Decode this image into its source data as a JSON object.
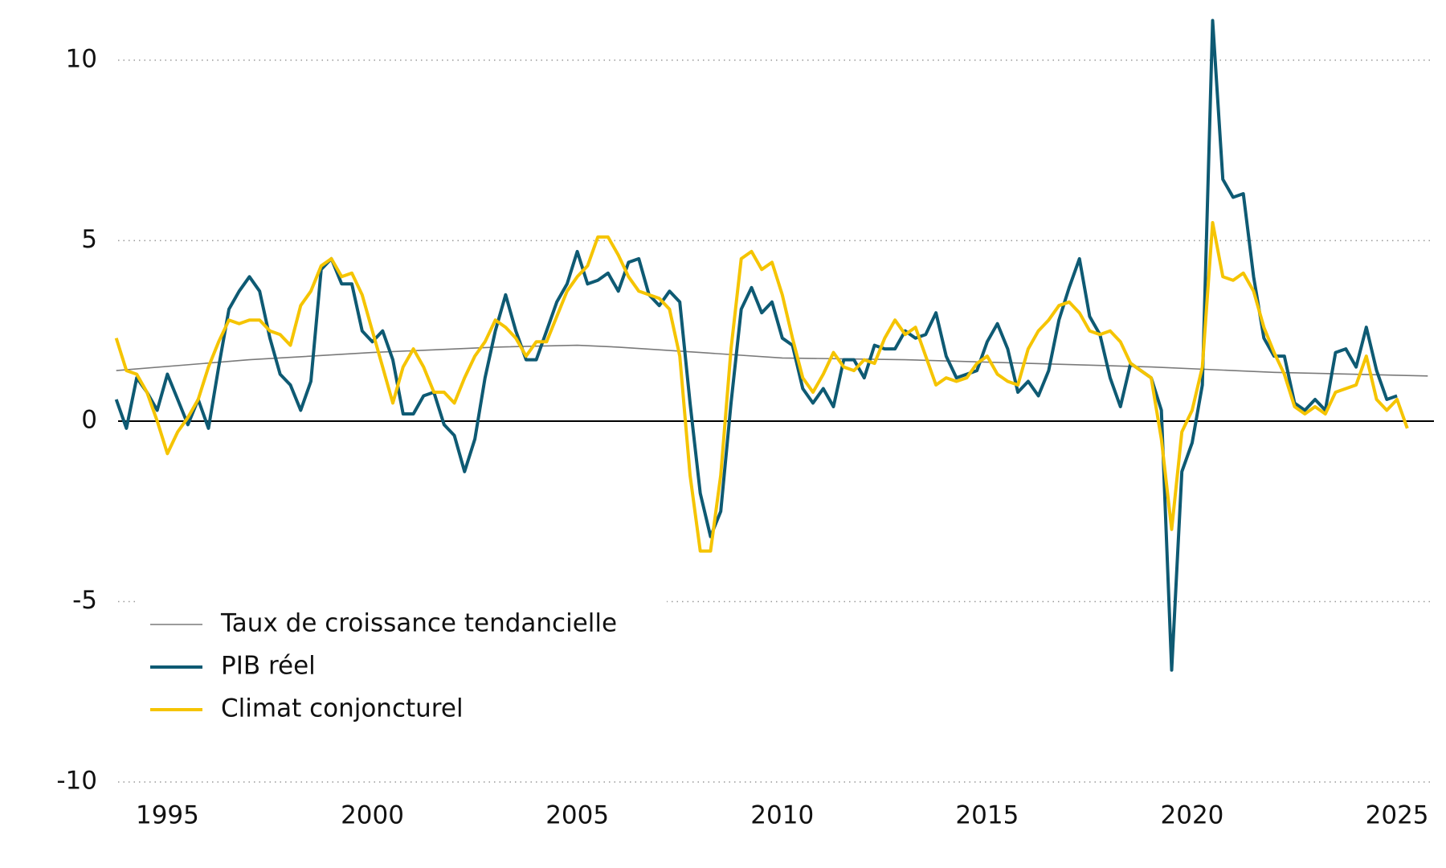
{
  "chart_data": {
    "type": "line",
    "xlim": [
      1993.6,
      2025.9
    ],
    "xticks": [
      1995,
      2000,
      2005,
      2010,
      2015,
      2020,
      2025
    ],
    "ylim": [
      -10,
      11.2
    ],
    "yticks": [
      -10,
      -5,
      0,
      5,
      10
    ],
    "grid": true,
    "legend": "lower-left",
    "x": [
      1993.75,
      1994,
      1994.25,
      1994.5,
      1994.75,
      1995,
      1995.25,
      1995.5,
      1995.75,
      1996,
      1996.25,
      1996.5,
      1996.75,
      1997,
      1997.25,
      1997.5,
      1997.75,
      1998,
      1998.25,
      1998.5,
      1998.75,
      1999,
      1999.25,
      1999.5,
      1999.75,
      2000,
      2000.25,
      2000.5,
      2000.75,
      2001,
      2001.25,
      2001.5,
      2001.75,
      2002,
      2002.25,
      2002.5,
      2002.75,
      2003,
      2003.25,
      2003.5,
      2003.75,
      2004,
      2004.25,
      2004.5,
      2004.75,
      2005,
      2005.25,
      2005.5,
      2005.75,
      2006,
      2006.25,
      2006.5,
      2006.75,
      2007,
      2007.25,
      2007.5,
      2007.75,
      2008,
      2008.25,
      2008.5,
      2008.75,
      2009,
      2009.25,
      2009.5,
      2009.75,
      2010,
      2010.25,
      2010.5,
      2010.75,
      2011,
      2011.25,
      2011.5,
      2011.75,
      2012,
      2012.25,
      2012.5,
      2012.75,
      2013,
      2013.25,
      2013.5,
      2013.75,
      2014,
      2014.25,
      2014.5,
      2014.75,
      2015,
      2015.25,
      2015.5,
      2015.75,
      2016,
      2016.25,
      2016.5,
      2016.75,
      2017,
      2017.25,
      2017.5,
      2017.75,
      2018,
      2018.25,
      2018.5,
      2018.75,
      2019,
      2019.25,
      2019.5,
      2019.75,
      2020,
      2020.25,
      2020.5,
      2020.75,
      2021,
      2021.25,
      2021.5,
      2021.75,
      2022,
      2022.25,
      2022.5,
      2022.75,
      2023,
      2023.25,
      2023.5,
      2023.75,
      2024,
      2024.25,
      2024.5,
      2024.75,
      2025,
      2025.25
    ],
    "series": [
      {
        "name": "Taux de croissance tendancielle",
        "color": "#7a7a7a",
        "width": 1.6,
        "x": [
          1993.75,
          1997,
          2000,
          2003,
          2005,
          2006,
          2008,
          2010,
          2013,
          2016,
          2019,
          2022,
          2025.75
        ],
        "values": [
          1.4,
          1.7,
          1.9,
          2.05,
          2.1,
          2.05,
          1.9,
          1.75,
          1.7,
          1.6,
          1.5,
          1.35,
          1.25
        ]
      },
      {
        "name": "PIB réel",
        "color": "#0e5a73",
        "width": 4,
        "values": [
          0.6,
          -0.2,
          1.2,
          0.8,
          0.3,
          1.3,
          0.6,
          -0.1,
          0.6,
          -0.2,
          1.5,
          3.1,
          3.6,
          4.0,
          3.6,
          2.3,
          1.3,
          1.0,
          0.3,
          1.1,
          4.2,
          4.5,
          3.8,
          3.8,
          2.5,
          2.2,
          2.5,
          1.7,
          0.2,
          0.2,
          0.7,
          0.8,
          -0.1,
          -0.4,
          -1.4,
          -0.5,
          1.2,
          2.5,
          3.5,
          2.5,
          1.7,
          1.7,
          2.5,
          3.3,
          3.8,
          4.7,
          3.8,
          3.9,
          4.1,
          3.6,
          4.4,
          4.5,
          3.5,
          3.2,
          3.6,
          3.3,
          0.5,
          -2.0,
          -3.2,
          -2.5,
          0.5,
          3.1,
          3.7,
          3.0,
          3.3,
          2.3,
          2.1,
          0.9,
          0.5,
          0.9,
          0.4,
          1.7,
          1.7,
          1.2,
          2.1,
          2.0,
          2.0,
          2.5,
          2.3,
          2.4,
          3.0,
          1.8,
          1.2,
          1.3,
          1.4,
          2.2,
          2.7,
          2.0,
          0.8,
          1.1,
          0.7,
          1.4,
          2.8,
          3.7,
          4.5,
          2.9,
          2.4,
          1.2,
          0.4,
          1.6,
          1.4,
          1.2,
          0.3,
          -6.9,
          -1.4,
          -0.6,
          1.0,
          11.1,
          6.7,
          6.2,
          6.3,
          4.0,
          2.3,
          1.8,
          1.8,
          0.5,
          0.3,
          0.6,
          0.3,
          1.9,
          2.0,
          1.5,
          2.6,
          1.4,
          0.6,
          0.7,
          null
        ]
      },
      {
        "name": "Climat conjoncturel",
        "color": "#f5c400",
        "width": 4,
        "values": [
          2.3,
          1.4,
          1.3,
          0.8,
          0.0,
          -0.9,
          -0.3,
          0.1,
          0.6,
          1.5,
          2.2,
          2.8,
          2.7,
          2.8,
          2.8,
          2.5,
          2.4,
          2.1,
          3.2,
          3.6,
          4.3,
          4.5,
          4.0,
          4.1,
          3.5,
          2.5,
          1.5,
          0.5,
          1.5,
          2.0,
          1.5,
          0.8,
          0.8,
          0.5,
          1.2,
          1.8,
          2.2,
          2.8,
          2.6,
          2.3,
          1.8,
          2.2,
          2.2,
          2.9,
          3.6,
          4.0,
          4.3,
          5.1,
          5.1,
          4.6,
          4.0,
          3.6,
          3.5,
          3.4,
          3.1,
          1.8,
          -1.5,
          -3.6,
          -3.6,
          -1.5,
          2.0,
          4.5,
          4.7,
          4.2,
          4.4,
          3.5,
          2.3,
          1.2,
          0.8,
          1.3,
          1.9,
          1.5,
          1.4,
          1.7,
          1.6,
          2.3,
          2.8,
          2.4,
          2.6,
          1.8,
          1.0,
          1.2,
          1.1,
          1.2,
          1.6,
          1.8,
          1.3,
          1.1,
          1.0,
          2.0,
          2.5,
          2.8,
          3.2,
          3.3,
          3.0,
          2.5,
          2.4,
          2.5,
          2.2,
          1.6,
          1.4,
          1.2,
          -0.5,
          -3.0,
          -0.3,
          0.3,
          1.5,
          5.5,
          4.0,
          3.9,
          4.1,
          3.6,
          2.6,
          1.9,
          1.3,
          0.4,
          0.2,
          0.4,
          0.2,
          0.8,
          0.9,
          1.0,
          1.8,
          0.6,
          0.3,
          0.6,
          -0.2
        ]
      }
    ]
  }
}
